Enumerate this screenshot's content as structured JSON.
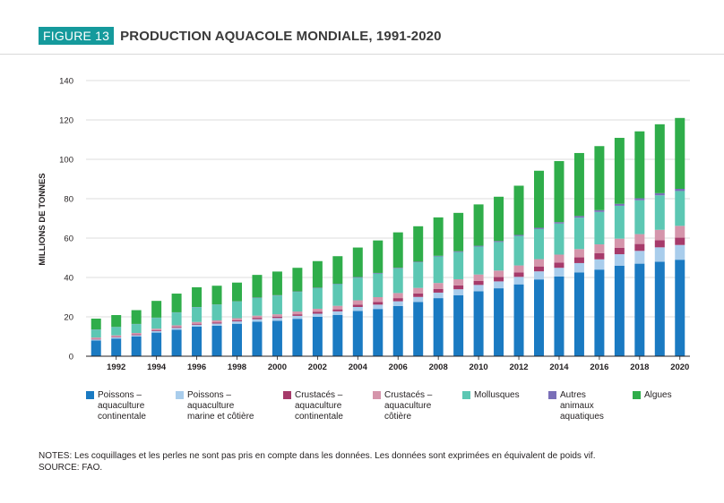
{
  "header": {
    "figure_label": "FIGURE 13",
    "title": "PRODUCTION AQUACOLE MONDIALE, 1991-2020"
  },
  "notes": {
    "notes_text": "NOTES: Les coquillages et les perles ne sont pas pris en compte dans les données. Les données sont exprimées en équivalent de poids vif.",
    "source_text": "SOURCE: FAO."
  },
  "chart_data": {
    "type": "bar",
    "stacked": true,
    "ylabel": "MILLIONS DE TONNES",
    "xlabel": "",
    "ylim": [
      0,
      140
    ],
    "yticks": [
      0,
      20,
      40,
      60,
      80,
      100,
      120,
      140
    ],
    "grid": "horizontal",
    "legend_position": "bottom",
    "x": [
      1991,
      1992,
      1993,
      1994,
      1995,
      1996,
      1997,
      1998,
      1999,
      2000,
      2001,
      2002,
      2003,
      2004,
      2005,
      2006,
      2007,
      2008,
      2009,
      2010,
      2011,
      2012,
      2013,
      2014,
      2015,
      2016,
      2017,
      2018,
      2019,
      2020
    ],
    "x_tick_labels": [
      "1992",
      "1994",
      "1996",
      "1998",
      "2000",
      "2002",
      "2004",
      "2006",
      "2008",
      "2010",
      "2012",
      "2014",
      "2016",
      "2018",
      "2020"
    ],
    "series": [
      {
        "name": "Poissons –\naquaculture\ncontinentale",
        "color": "#1a7ac2",
        "values": [
          8,
          9,
          10,
          12,
          13.5,
          15,
          15.5,
          16.5,
          17.5,
          18,
          19,
          20,
          21,
          23,
          24,
          25.5,
          27.5,
          29.5,
          31,
          33,
          34.5,
          36.5,
          39,
          40.5,
          42.5,
          44,
          46,
          47,
          48,
          49
        ]
      },
      {
        "name": "Poissons –\naquaculture\nmarine et côtière",
        "color": "#a9cdec",
        "values": [
          0.5,
          0.6,
          0.7,
          0.8,
          0.9,
          1,
          1.1,
          1.2,
          1.3,
          1.4,
          1.5,
          1.6,
          1.8,
          2,
          2.2,
          2.4,
          2.6,
          2.8,
          3,
          3.2,
          3.5,
          3.8,
          4.1,
          4.4,
          4.8,
          5.2,
          5.8,
          6.5,
          7.3,
          7.5
        ]
      },
      {
        "name": "Crustacés –\naquaculture\ncontinentale",
        "color": "#a63a6a",
        "values": [
          0.3,
          0.3,
          0.4,
          0.4,
          0.5,
          0.5,
          0.6,
          0.6,
          0.7,
          0.7,
          0.8,
          0.9,
          1,
          1.2,
          1.4,
          1.6,
          1.8,
          1.9,
          2,
          2.1,
          2.2,
          2.3,
          2.5,
          2.7,
          2.9,
          3.1,
          3.3,
          3.5,
          3.6,
          3.7
        ]
      },
      {
        "name": "Crustacés –\naquaculture\ncôtière",
        "color": "#d595ab",
        "values": [
          0.7,
          0.7,
          0.7,
          0.8,
          0.8,
          0.9,
          1,
          1,
          1.1,
          1.2,
          1.4,
          1.6,
          1.8,
          2.2,
          2.4,
          2.6,
          2.8,
          3,
          3.1,
          3.2,
          3.3,
          3.5,
          3.7,
          4,
          4.2,
          4.5,
          4.6,
          5,
          5.3,
          6
        ]
      },
      {
        "name": "Mollusques",
        "color": "#5cc7b3",
        "values": [
          4,
          4.2,
          4.5,
          5.5,
          6.5,
          7.5,
          8,
          8.5,
          9,
          9.5,
          10,
          10.5,
          11,
          11.5,
          12,
          12.5,
          13,
          13.5,
          13.8,
          14.2,
          14.5,
          15,
          15.3,
          15.8,
          16,
          16.5,
          16.7,
          17.2,
          17.5,
          17.7
        ]
      },
      {
        "name": "Autres\nanimaux\naquatiques",
        "color": "#7a6fb8",
        "values": [
          0.1,
          0.1,
          0.1,
          0.1,
          0.1,
          0.1,
          0.1,
          0.1,
          0.2,
          0.2,
          0.2,
          0.2,
          0.2,
          0.3,
          0.3,
          0.3,
          0.3,
          0.3,
          0.4,
          0.4,
          0.5,
          0.5,
          0.6,
          0.7,
          0.8,
          0.9,
          1,
          1,
          1.1,
          1.1
        ]
      },
      {
        "name": "Algues",
        "color": "#2fad4a",
        "values": [
          5.5,
          6,
          7,
          8.5,
          9.5,
          10,
          9.5,
          9.5,
          11.5,
          12,
          12,
          13.5,
          14,
          15,
          16.5,
          18,
          18,
          19.5,
          19.5,
          21,
          22.5,
          25,
          29,
          31,
          32,
          32.5,
          33.5,
          34,
          35,
          36
        ]
      }
    ]
  }
}
